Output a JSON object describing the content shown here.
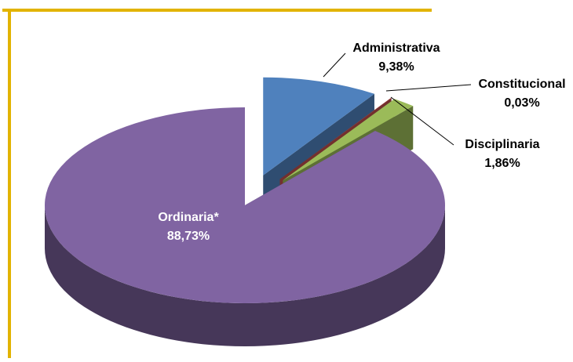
{
  "chart_data": {
    "type": "pie3d",
    "categories": [
      "Administrativa",
      "Constitucional",
      "Disciplinaria",
      "Ordinaria*"
    ],
    "values": [
      9.38,
      0.03,
      1.86,
      88.73
    ],
    "value_labels": [
      "9,38%",
      "0,03%",
      "1,86%",
      "88,73%"
    ],
    "colors": [
      "#4f81bd",
      "#c0504d",
      "#9bbb59",
      "#8064a2"
    ],
    "exploded": [
      true,
      true,
      true,
      false
    ]
  }
}
